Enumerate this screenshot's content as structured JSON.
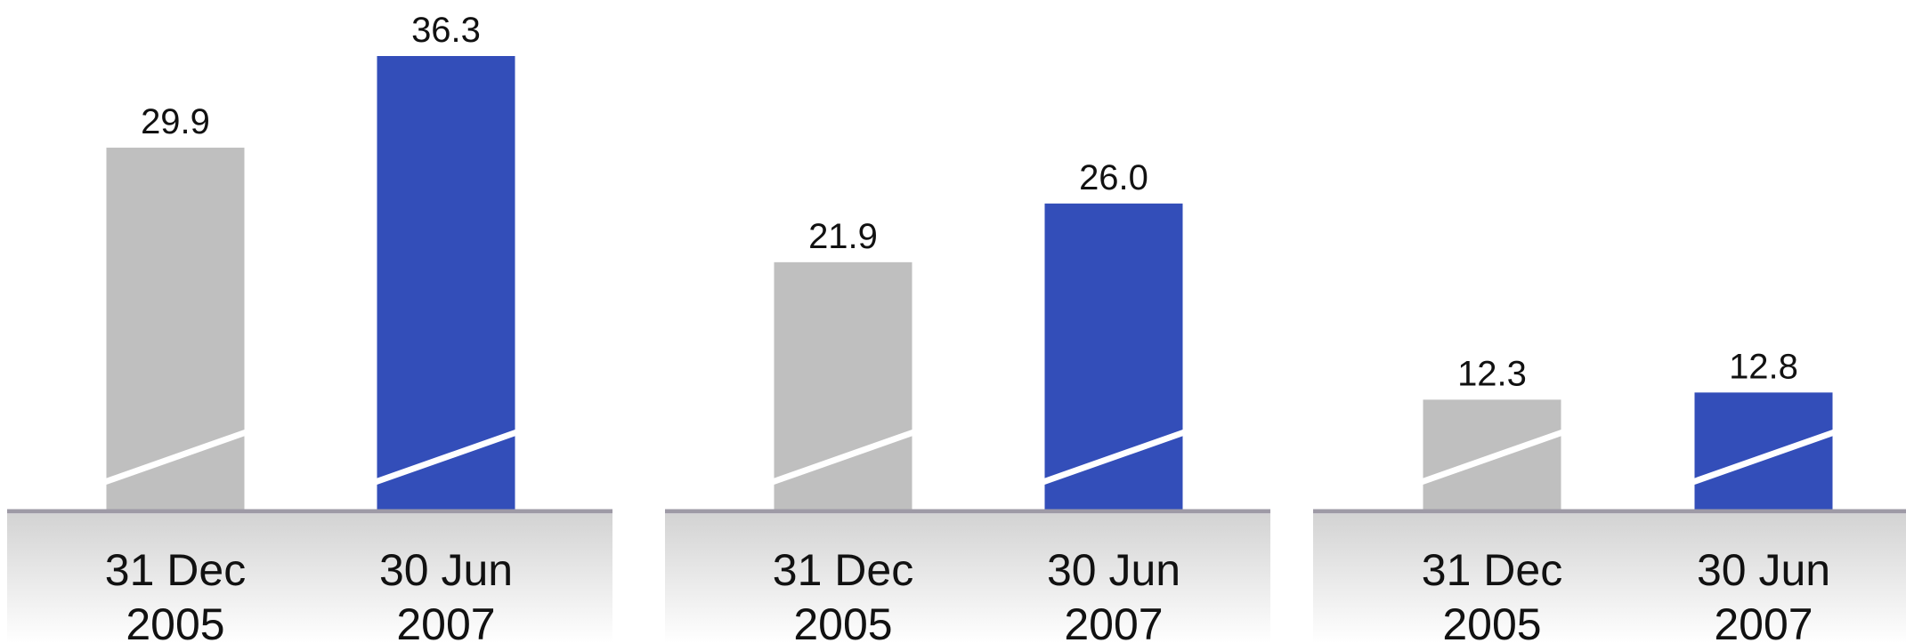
{
  "colors": {
    "previous": "#bfbfbf",
    "current": "#334eb9",
    "baseline": "#9e9aa6",
    "break_line": "#ffffff"
  },
  "chart_data": [
    {
      "type": "bar",
      "categories": [
        "31 Dec 2005",
        "30 Jun 2007"
      ],
      "category_lines": [
        [
          "31 Dec",
          "2005"
        ],
        [
          "30 Jun",
          "2007"
        ]
      ],
      "values": [
        29.9,
        36.3
      ],
      "value_labels": [
        "29.9",
        "36.3"
      ],
      "axis_break": true
    },
    {
      "type": "bar",
      "categories": [
        "31 Dec 2005",
        "30 Jun 2007"
      ],
      "category_lines": [
        [
          "31 Dec",
          "2005"
        ],
        [
          "30 Jun",
          "2007"
        ]
      ],
      "values": [
        21.9,
        26.0
      ],
      "value_labels": [
        "21.9",
        "26.0"
      ],
      "axis_break": true
    },
    {
      "type": "bar",
      "categories": [
        "31 Dec 2005",
        "30 Jun 2007"
      ],
      "category_lines": [
        [
          "31 Dec",
          "2005"
        ],
        [
          "30 Jun",
          "2007"
        ]
      ],
      "values": [
        12.3,
        12.8
      ],
      "value_labels": [
        "12.3",
        "12.8"
      ],
      "axis_break": true
    }
  ]
}
